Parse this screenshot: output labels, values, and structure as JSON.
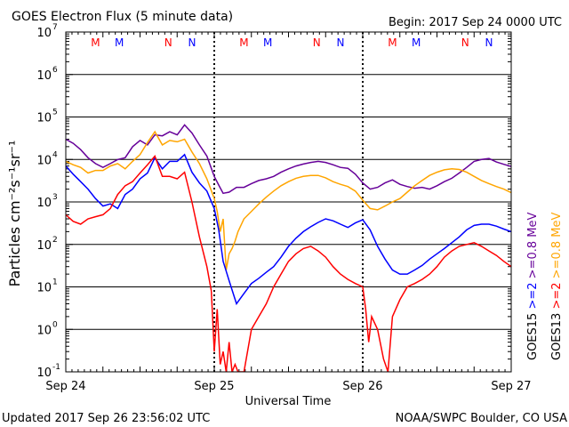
{
  "title": "GOES Electron Flux (5 minute data)",
  "begin": "Begin: 2017 Sep 24 0000 UTC",
  "updated": "Updated 2017 Sep 26 23:56:02 UTC",
  "credit": "NOAA/SWPC Boulder, CO USA",
  "chart_data": {
    "type": "line",
    "xlabel": "Universal Time",
    "ylabel": "Particles cm⁻²s⁻¹sr⁻¹",
    "yscale": "log",
    "ylim": [
      0.1,
      10000000
    ],
    "ytick_exponents": [
      -1,
      0,
      1,
      2,
      3,
      4,
      5,
      6,
      7
    ],
    "xlim": [
      0,
      3
    ],
    "xticks": [
      {
        "x": 0,
        "label": "Sep 24"
      },
      {
        "x": 1,
        "label": "Sep 25"
      },
      {
        "x": 2,
        "label": "Sep 26"
      },
      {
        "x": 3,
        "label": "Sep 27"
      }
    ],
    "dashed_threshold": 1000,
    "grid": true,
    "day_boundaries": [
      1,
      2
    ],
    "markers": [
      {
        "x": 0.2,
        "label": "M",
        "color": "#ff0000"
      },
      {
        "x": 0.36,
        "label": "M",
        "color": "#0000ff"
      },
      {
        "x": 0.69,
        "label": "N",
        "color": "#ff0000"
      },
      {
        "x": 0.85,
        "label": "N",
        "color": "#0000ff"
      },
      {
        "x": 1.2,
        "label": "M",
        "color": "#ff0000"
      },
      {
        "x": 1.36,
        "label": "M",
        "color": "#0000ff"
      },
      {
        "x": 1.69,
        "label": "N",
        "color": "#ff0000"
      },
      {
        "x": 1.85,
        "label": "N",
        "color": "#0000ff"
      },
      {
        "x": 2.2,
        "label": "M",
        "color": "#ff0000"
      },
      {
        "x": 2.36,
        "label": "M",
        "color": "#0000ff"
      },
      {
        "x": 2.69,
        "label": "N",
        "color": "#ff0000"
      },
      {
        "x": 2.85,
        "label": "N",
        "color": "#0000ff"
      }
    ],
    "legend": {
      "col1": [
        {
          "text": "GOES15",
          "color": "#000000"
        },
        {
          "text": ">=2",
          "color": "#0000ff"
        },
        {
          "text": ">=0.8 MeV",
          "color": "#660099"
        }
      ],
      "col2": [
        {
          "text": "GOES13",
          "color": "#000000"
        },
        {
          "text": ">=2",
          "color": "#ff0000"
        },
        {
          "text": ">=0.8 MeV",
          "color": "#ffa500"
        }
      ]
    },
    "series": [
      {
        "name": "GOES15 >=0.8 MeV",
        "color": "#660099",
        "x": [
          0,
          0.05,
          0.1,
          0.15,
          0.2,
          0.25,
          0.3,
          0.35,
          0.4,
          0.45,
          0.5,
          0.55,
          0.6,
          0.65,
          0.7,
          0.75,
          0.8,
          0.85,
          0.9,
          0.95,
          1.0,
          1.03,
          1.06,
          1.1,
          1.15,
          1.2,
          1.25,
          1.3,
          1.35,
          1.4,
          1.45,
          1.5,
          1.55,
          1.6,
          1.65,
          1.7,
          1.75,
          1.8,
          1.85,
          1.9,
          1.95,
          2.0,
          2.05,
          2.1,
          2.15,
          2.2,
          2.25,
          2.3,
          2.35,
          2.4,
          2.45,
          2.5,
          2.55,
          2.6,
          2.65,
          2.7,
          2.75,
          2.8,
          2.85,
          2.9,
          2.95,
          3.0
        ],
        "y": [
          30000,
          24000,
          17000,
          11000,
          8000,
          6500,
          8000,
          10000,
          11000,
          20000,
          28000,
          22000,
          38000,
          36000,
          45000,
          38000,
          65000,
          42000,
          22000,
          12000,
          4000,
          2500,
          1600,
          1700,
          2200,
          2200,
          2700,
          3200,
          3500,
          4000,
          5000,
          6000,
          7000,
          7800,
          8500,
          9000,
          8500,
          7500,
          6500,
          6200,
          4500,
          2800,
          2000,
          2200,
          2800,
          3300,
          2600,
          2300,
          2100,
          2200,
          2000,
          2400,
          3000,
          3600,
          4800,
          6500,
          9000,
          10000,
          10500,
          8700,
          7700,
          6800
        ]
      },
      {
        "name": "GOES13 >=0.8 MeV",
        "color": "#ffa500",
        "x": [
          0,
          0.05,
          0.1,
          0.15,
          0.2,
          0.25,
          0.3,
          0.35,
          0.4,
          0.45,
          0.5,
          0.55,
          0.6,
          0.65,
          0.7,
          0.75,
          0.8,
          0.85,
          0.9,
          0.95,
          1.0,
          1.02,
          1.04,
          1.06,
          1.08,
          1.1,
          1.12,
          1.14,
          1.16,
          1.2,
          1.25,
          1.3,
          1.35,
          1.4,
          1.45,
          1.5,
          1.55,
          1.6,
          1.65,
          1.7,
          1.75,
          1.8,
          1.85,
          1.9,
          1.95,
          2.0,
          2.05,
          2.1,
          2.15,
          2.2,
          2.25,
          2.3,
          2.35,
          2.4,
          2.45,
          2.5,
          2.55,
          2.6,
          2.65,
          2.7,
          2.75,
          2.8,
          2.85,
          2.9,
          2.95,
          3.0
        ],
        "y": [
          9000,
          7500,
          6500,
          4800,
          5500,
          5500,
          7000,
          8000,
          6000,
          9000,
          13000,
          25000,
          45000,
          22000,
          28000,
          26000,
          30000,
          15000,
          8000,
          3500,
          1200,
          600,
          200,
          400,
          25,
          60,
          80,
          120,
          200,
          400,
          600,
          900,
          1300,
          1800,
          2400,
          3000,
          3600,
          4000,
          4200,
          4200,
          3700,
          3000,
          2600,
          2300,
          1800,
          1100,
          700,
          650,
          800,
          1000,
          1200,
          1700,
          2400,
          3200,
          4200,
          5000,
          5700,
          6000,
          5800,
          5000,
          4000,
          3200,
          2700,
          2300,
          2000,
          1650
        ]
      },
      {
        "name": "GOES15 >=2",
        "color": "#0000ff",
        "x": [
          0,
          0.05,
          0.1,
          0.15,
          0.2,
          0.25,
          0.3,
          0.35,
          0.4,
          0.45,
          0.5,
          0.55,
          0.6,
          0.65,
          0.7,
          0.75,
          0.8,
          0.85,
          0.9,
          0.95,
          1.0,
          1.03,
          1.06,
          1.1,
          1.15,
          1.2,
          1.25,
          1.3,
          1.35,
          1.4,
          1.45,
          1.5,
          1.55,
          1.6,
          1.65,
          1.7,
          1.75,
          1.8,
          1.85,
          1.9,
          1.95,
          2.0,
          2.05,
          2.1,
          2.15,
          2.2,
          2.25,
          2.3,
          2.35,
          2.4,
          2.45,
          2.5,
          2.55,
          2.6,
          2.65,
          2.7,
          2.75,
          2.8,
          2.85,
          2.9,
          2.95,
          3.0
        ],
        "y": [
          7000,
          4500,
          3000,
          2000,
          1200,
          800,
          900,
          700,
          1500,
          2000,
          3500,
          4800,
          11000,
          6000,
          9000,
          9000,
          13000,
          5000,
          2800,
          1800,
          700,
          220,
          40,
          14,
          4,
          7,
          12,
          16,
          22,
          30,
          50,
          90,
          140,
          200,
          260,
          330,
          400,
          360,
          300,
          250,
          320,
          380,
          220,
          90,
          45,
          25,
          20,
          20,
          25,
          32,
          45,
          60,
          80,
          110,
          150,
          220,
          280,
          300,
          300,
          270,
          230,
          200
        ]
      },
      {
        "name": "GOES13 >=2",
        "color": "#ff0000",
        "x": [
          0,
          0.05,
          0.1,
          0.15,
          0.2,
          0.25,
          0.3,
          0.35,
          0.4,
          0.45,
          0.5,
          0.55,
          0.6,
          0.65,
          0.7,
          0.75,
          0.8,
          0.85,
          0.9,
          0.95,
          0.98,
          1.0,
          1.02,
          1.04,
          1.06,
          1.08,
          1.1,
          1.12,
          1.14,
          1.16,
          1.18,
          1.2,
          1.25,
          1.3,
          1.35,
          1.4,
          1.45,
          1.5,
          1.55,
          1.6,
          1.65,
          1.7,
          1.75,
          1.8,
          1.85,
          1.9,
          1.95,
          2.0,
          2.02,
          2.04,
          2.06,
          2.1,
          2.14,
          2.17,
          2.2,
          2.25,
          2.3,
          2.35,
          2.4,
          2.45,
          2.5,
          2.55,
          2.6,
          2.65,
          2.7,
          2.75,
          2.8,
          2.85,
          2.9,
          2.95,
          3.0
        ],
        "y": [
          500,
          350,
          300,
          400,
          450,
          500,
          700,
          1500,
          2400,
          3000,
          4800,
          7500,
          12000,
          4000,
          4000,
          3500,
          5000,
          1000,
          150,
          30,
          8,
          0.3,
          3,
          0.15,
          0.3,
          0.1,
          0.5,
          0.1,
          0.15,
          0.1,
          0.1,
          0.1,
          1,
          2,
          4,
          10,
          20,
          40,
          60,
          80,
          90,
          70,
          50,
          30,
          20,
          15,
          12,
          10,
          3,
          0.5,
          2,
          1,
          0.2,
          0.1,
          2,
          5,
          10,
          12,
          15,
          20,
          30,
          50,
          70,
          90,
          100,
          110,
          90,
          70,
          55,
          40,
          30
        ]
      }
    ]
  }
}
